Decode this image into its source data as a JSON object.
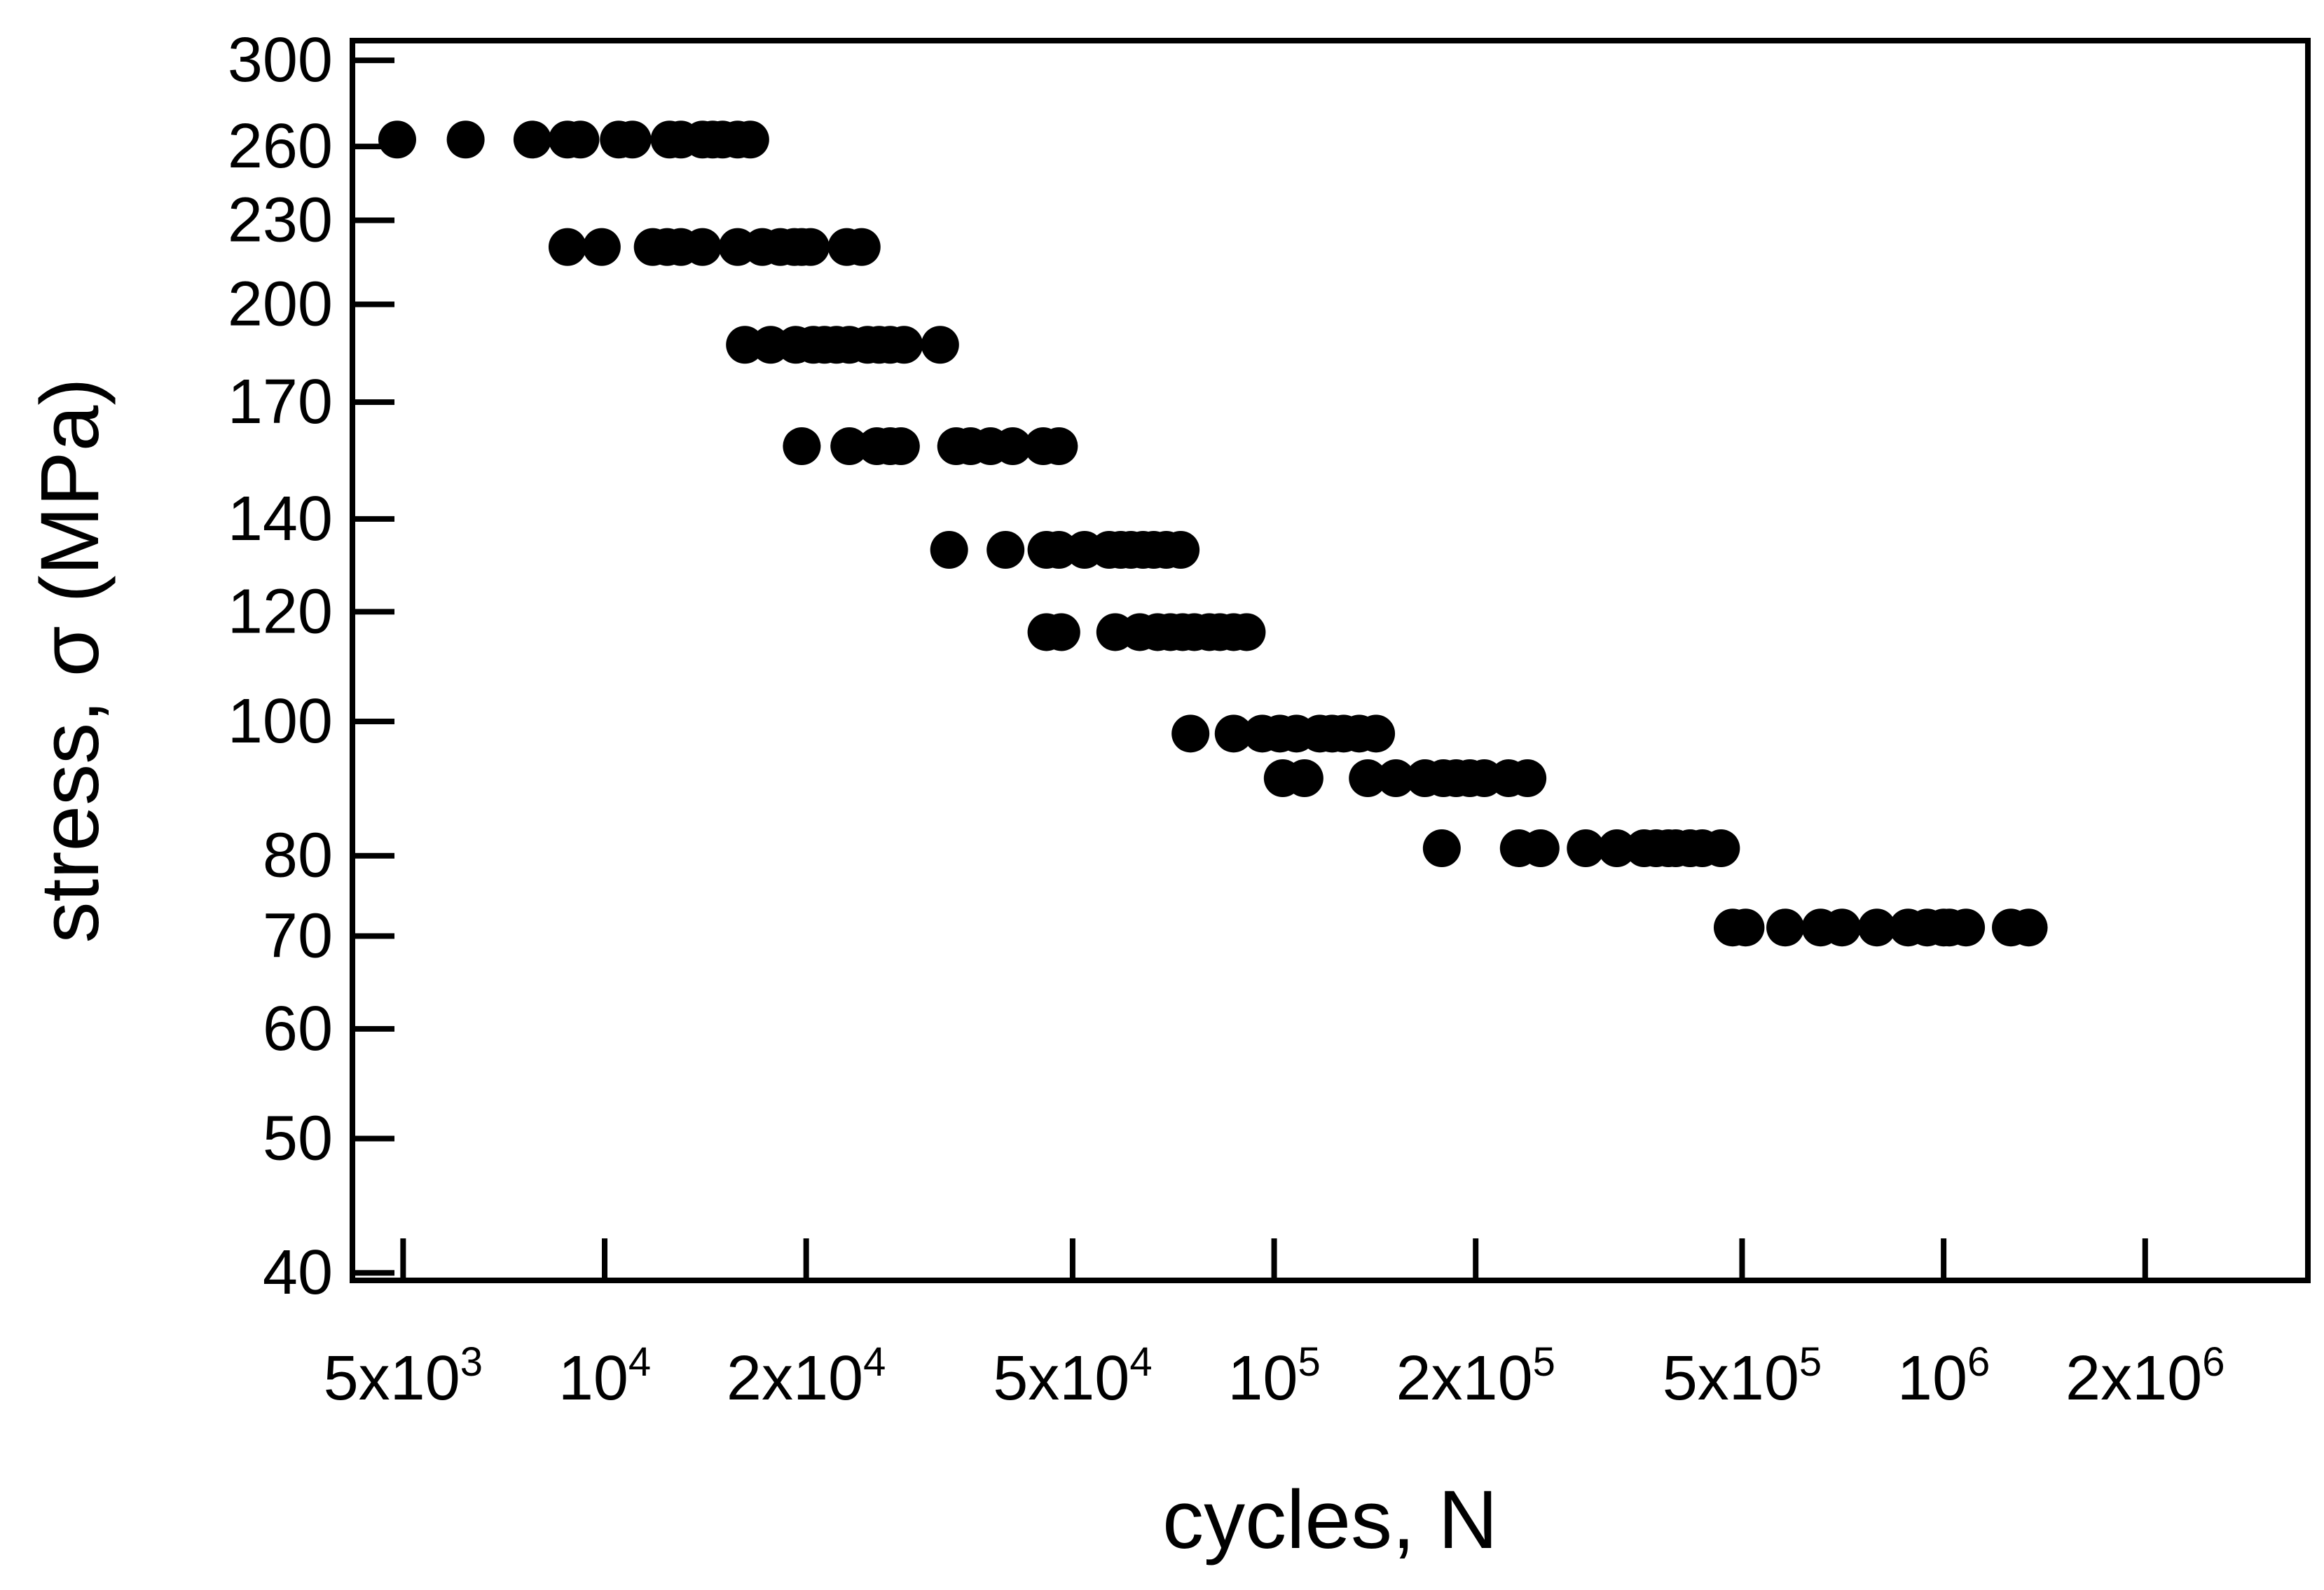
{
  "chart_data": {
    "type": "scatter",
    "xlabel": "cycles, N",
    "ylabel": "stress, σ (MPa)",
    "x_scale": "log",
    "y_scale": "log",
    "xlim": [
      4200,
      3500000
    ],
    "ylim": [
      39.5,
      310
    ],
    "grid": false,
    "legend": "none",
    "marker_color": "#000000",
    "x_ticks": [
      {
        "value": 5000,
        "base": "5x10",
        "exp": "3"
      },
      {
        "value": 10000,
        "base": "10",
        "exp": "4"
      },
      {
        "value": 20000,
        "base": "2x10",
        "exp": "4"
      },
      {
        "value": 50000,
        "base": "5x10",
        "exp": "4"
      },
      {
        "value": 100000,
        "base": "10",
        "exp": "5"
      },
      {
        "value": 200000,
        "base": "2x10",
        "exp": "5"
      },
      {
        "value": 500000,
        "base": "5x10",
        "exp": "5"
      },
      {
        "value": 1000000,
        "base": "10",
        "exp": "6"
      },
      {
        "value": 2000000,
        "base": "2x10",
        "exp": "6"
      }
    ],
    "y_ticks": [
      {
        "value": 40,
        "label": "40"
      },
      {
        "value": 50,
        "label": "50"
      },
      {
        "value": 60,
        "label": "60"
      },
      {
        "value": 70,
        "label": "70"
      },
      {
        "value": 80,
        "label": "80"
      },
      {
        "value": 100,
        "label": "100"
      },
      {
        "value": 120,
        "label": "120"
      },
      {
        "value": 140,
        "label": "140"
      },
      {
        "value": 170,
        "label": "170"
      },
      {
        "value": 200,
        "label": "200"
      },
      {
        "value": 230,
        "label": "230"
      },
      {
        "value": 260,
        "label": "260"
      },
      {
        "value": 300,
        "label": "300"
      }
    ],
    "series": [
      {
        "y": 263,
        "x": [
          4900,
          6200,
          7800,
          8800,
          9200,
          10500,
          11000,
          12500,
          13000,
          14000,
          14500,
          15000,
          15800,
          16500
        ]
      },
      {
        "y": 220,
        "x": [
          8800,
          9900,
          11800,
          12400,
          13000,
          14000,
          15800,
          17200,
          18300,
          19200,
          19700,
          20300,
          23000,
          24200
        ]
      },
      {
        "y": 187,
        "x": [
          16200,
          17700,
          19300,
          20500,
          21300,
          22200,
          23200,
          24700,
          25700,
          26700,
          28000,
          31700
        ]
      },
      {
        "y": 158,
        "x": [
          19700,
          23200,
          25500,
          26700,
          27700,
          33500,
          35200,
          37700,
          40700,
          45200,
          47700
        ]
      },
      {
        "y": 133,
        "x": [
          32700,
          39700,
          45700,
          47700,
          52100,
          56700,
          59000,
          61100,
          63700,
          66100,
          69000,
          72500
        ]
      },
      {
        "y": 116,
        "x": [
          45700,
          48100,
          57900,
          63000,
          67000,
          70000,
          73000,
          76000,
          80000,
          83000,
          87000,
          91000
        ]
      },
      {
        "y": 98,
        "x": [
          75000,
          87000,
          96000,
          102000,
          108000,
          117000,
          122000,
          127000,
          134000,
          142000
        ]
      },
      {
        "y": 91,
        "x": [
          103000,
          111000,
          138000,
          152000,
          168000,
          179000,
          187000,
          196000,
          206000,
          224000,
          239000
        ]
      },
      {
        "y": 81,
        "x": [
          178000,
          232000,
          250000,
          292000,
          325000,
          357000,
          372000,
          388000,
          398000,
          418000,
          436000,
          465000
        ]
      },
      {
        "y": 71,
        "x": [
          484000,
          506000,
          580000,
          655000,
          705000,
          795000,
          885000,
          945000,
          1000000,
          1020000,
          1080000,
          1260000,
          1340000
        ]
      }
    ]
  }
}
